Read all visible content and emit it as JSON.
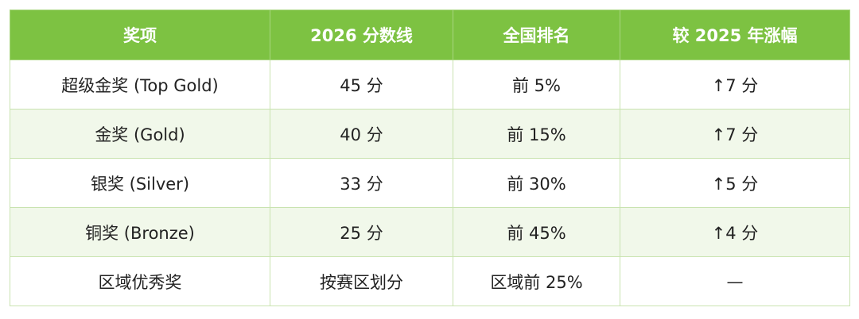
{
  "table": {
    "header": [
      "奖项",
      "2026 分数线",
      "全国排名",
      "较 2025 年涨幅"
    ],
    "rows": [
      [
        "超级金奖 (Top Gold)",
        "45 分",
        "前 5%",
        "↑7 分"
      ],
      [
        "金奖 (Gold)",
        "40 分",
        "前 15%",
        "↑7 分"
      ],
      [
        "银奖 (Silver)",
        "33 分",
        "前 30%",
        "↑5 分"
      ],
      [
        "铜奖 (Bronze)",
        "25 分",
        "前 45%",
        "↑4 分"
      ],
      [
        "区域优秀奖",
        "按赛区划分",
        "区域前 25%",
        "—"
      ]
    ]
  }
}
